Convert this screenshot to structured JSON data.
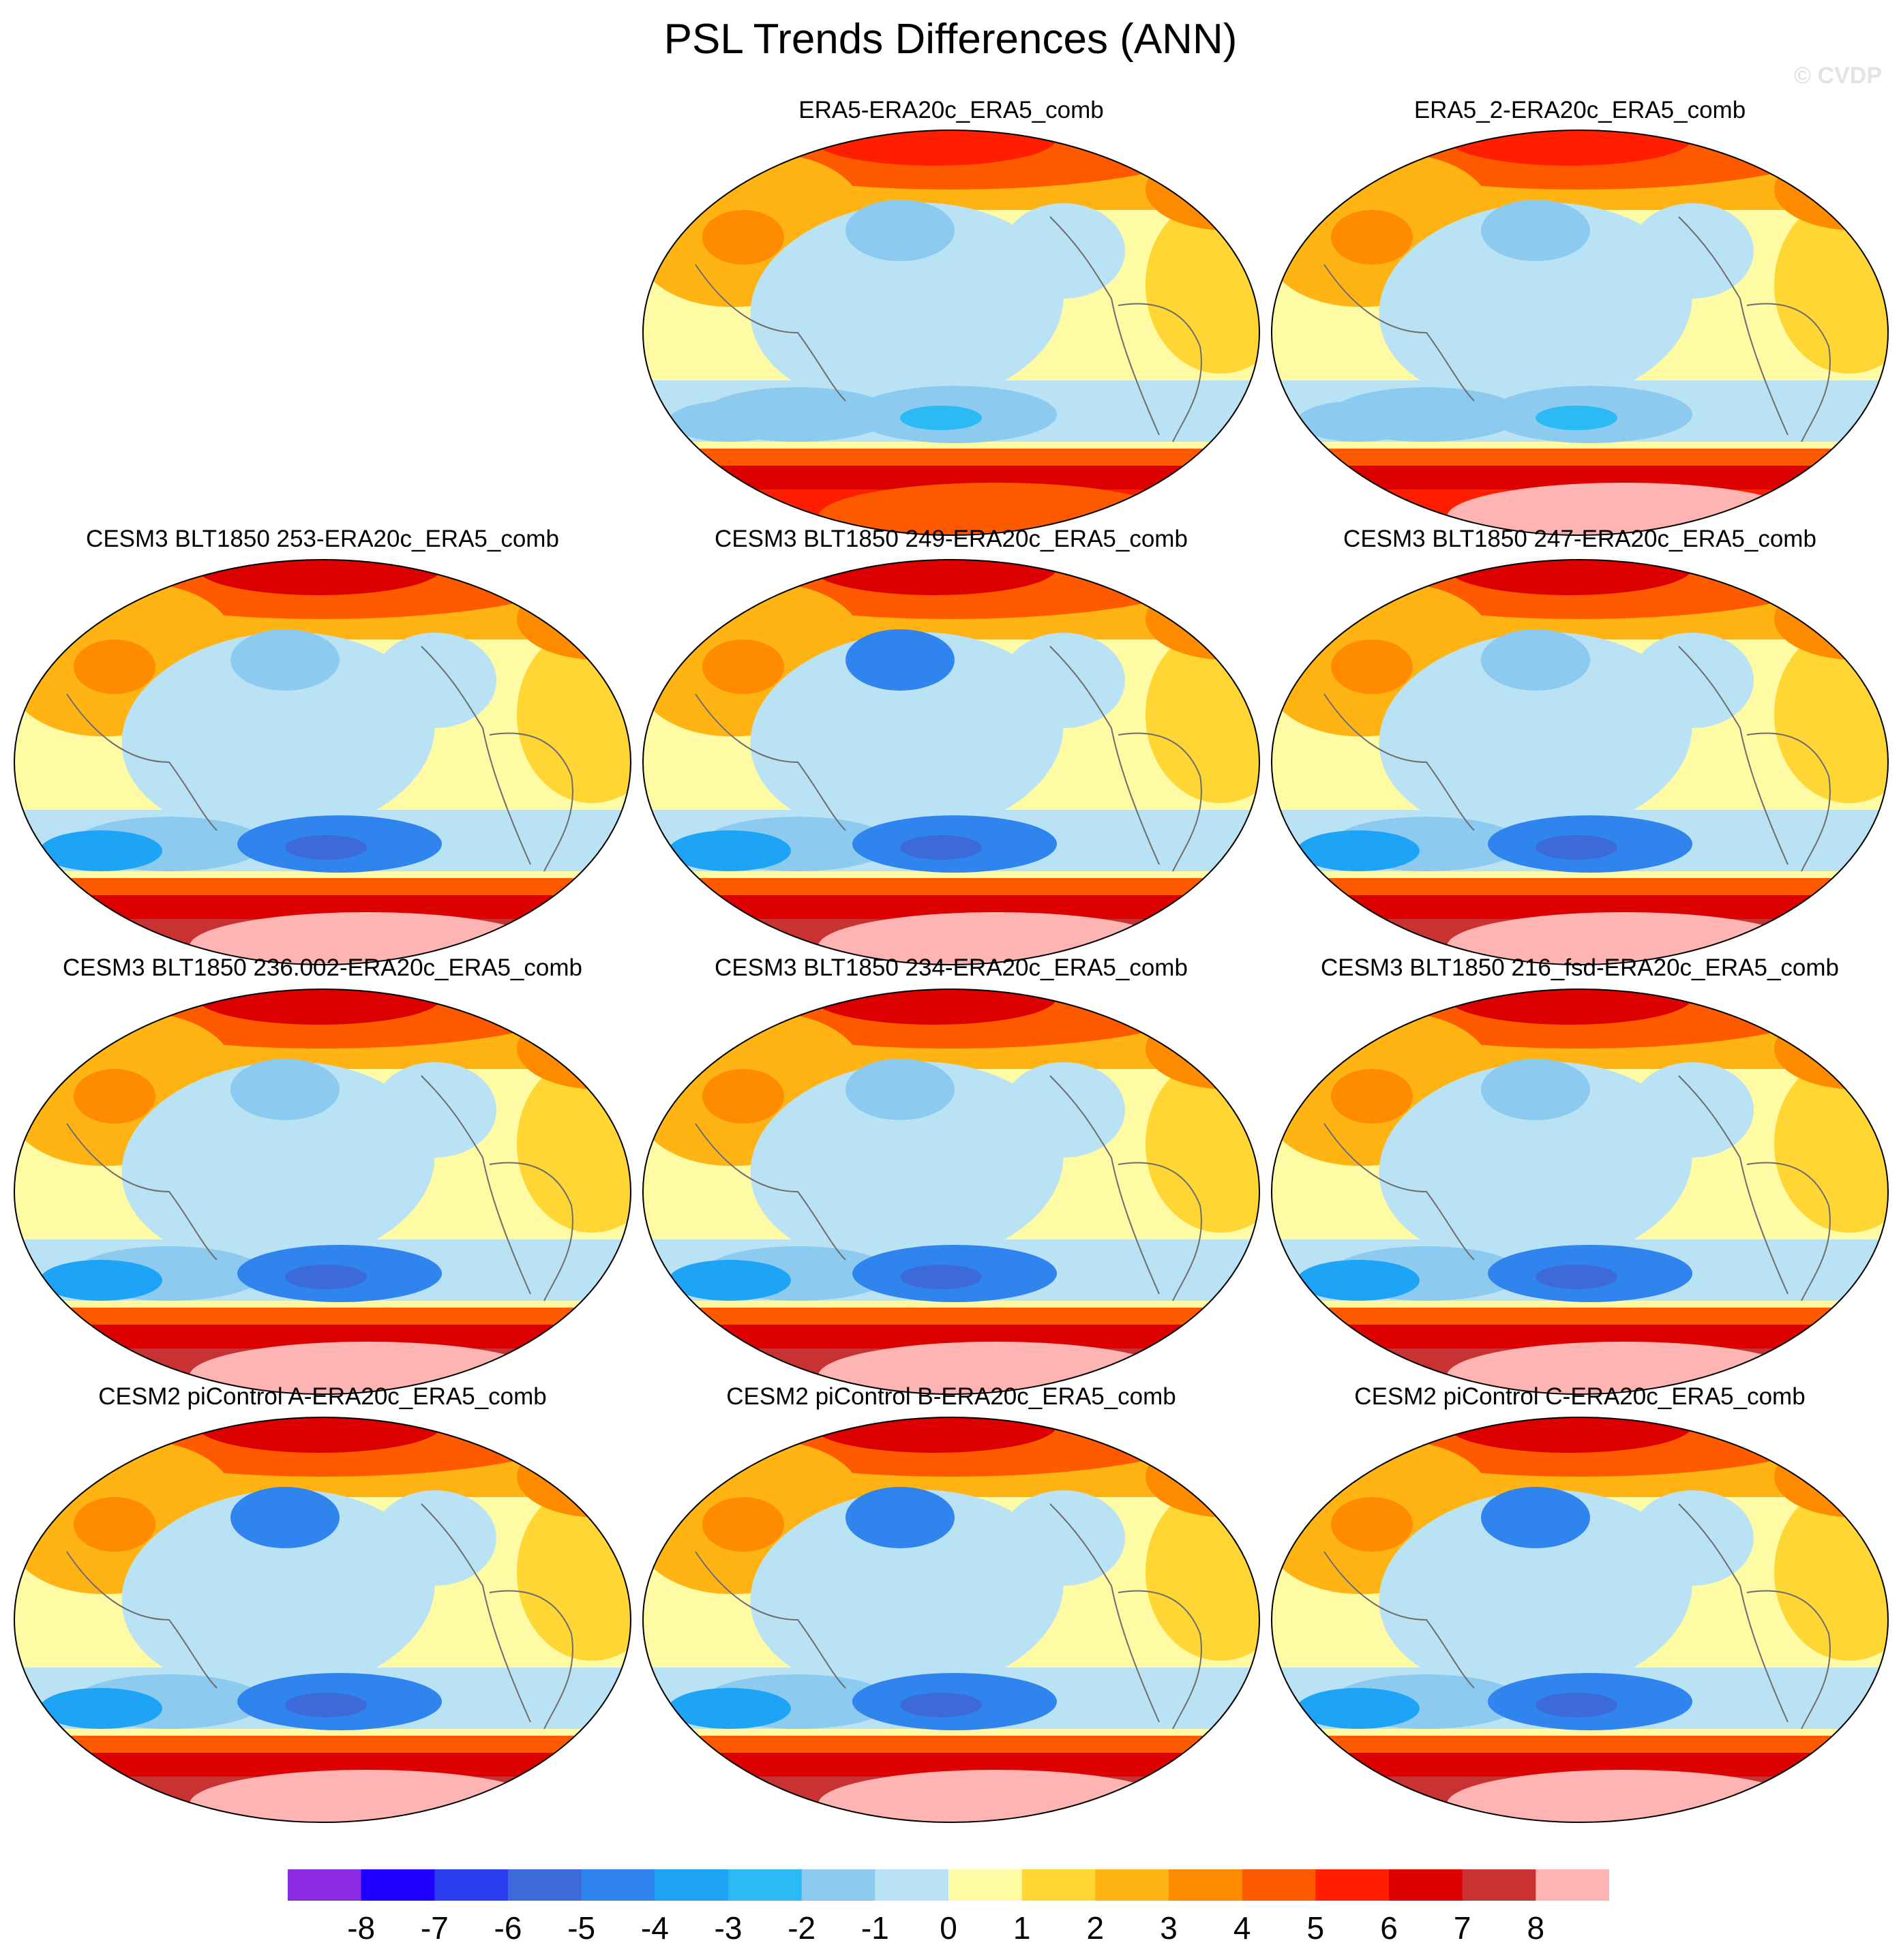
{
  "title": "PSL Trends Differences (ANN)",
  "watermark": "© CVDP",
  "panels": [
    {
      "label": "ERA5-ERA20c_ERA5_comb",
      "variant": 0
    },
    {
      "label": "ERA5_2-ERA20c_ERA5_comb",
      "variant": 1
    },
    {
      "label": "CESM3 BLT1850 253-ERA20c_ERA5_comb",
      "variant": 2
    },
    {
      "label": "CESM3 BLT1850 249-ERA20c_ERA5_comb",
      "variant": 3
    },
    {
      "label": "CESM3 BLT1850 247-ERA20c_ERA5_comb",
      "variant": 4
    },
    {
      "label": "CESM3 BLT1850 236.002-ERA20c_ERA5_comb",
      "variant": 5
    },
    {
      "label": "CESM3 BLT1850 234-ERA20c_ERA5_comb",
      "variant": 6
    },
    {
      "label": "CESM3 BLT1850 216_fsd-ERA20c_ERA5_comb",
      "variant": 7
    },
    {
      "label": "CESM2 piControl A-ERA20c_ERA5_comb",
      "variant": 8
    },
    {
      "label": "CESM2 piControl B-ERA20c_ERA5_comb",
      "variant": 9
    },
    {
      "label": "CESM2 piControl C-ERA20c_ERA5_comb",
      "variant": 10
    }
  ],
  "colorbar": {
    "colors": [
      "#8a2be2",
      "#1e00ff",
      "#2a3ef0",
      "#3c6ad8",
      "#2f84ee",
      "#1ea4f7",
      "#2cbaf5",
      "#8ccbef",
      "#b9e2f4",
      "#fffaa4",
      "#ffd633",
      "#ffb414",
      "#ff8c00",
      "#ff5a00",
      "#ff1e00",
      "#dc0000",
      "#c83232",
      "#ffb4b4"
    ],
    "labels": [
      "-8",
      "-7",
      "-6",
      "-5",
      "-4",
      "-3",
      "-2",
      "-1",
      "0",
      "1",
      "2",
      "3",
      "4",
      "5",
      "6",
      "7",
      "8"
    ]
  }
}
